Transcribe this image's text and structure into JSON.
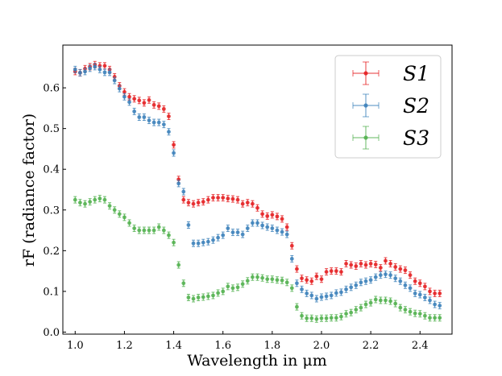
{
  "chart_data": {
    "type": "scatter",
    "title": "",
    "xlabel": "Wavelength in μm",
    "ylabel": "rF (radiance factor)",
    "xlim": [
      0.95,
      2.53
    ],
    "ylim": [
      -0.005,
      0.705
    ],
    "xticks": [
      1.0,
      1.2,
      1.4,
      1.6,
      1.8,
      2.0,
      2.2,
      2.4
    ],
    "xtick_labels": [
      "1.0",
      "1.2",
      "1.4",
      "1.6",
      "1.8",
      "2.0",
      "2.2",
      "2.4"
    ],
    "yticks": [
      0.0,
      0.1,
      0.2,
      0.3,
      0.4,
      0.5,
      0.6
    ],
    "ytick_labels": [
      "0.0",
      "0.1",
      "0.2",
      "0.3",
      "0.4",
      "0.5",
      "0.6"
    ],
    "grid": false,
    "error_bars": true,
    "legend_position": "top-right",
    "series": [
      {
        "name": "S1",
        "color": "#e41a1c",
        "x": [
          1.0,
          1.02,
          1.04,
          1.06,
          1.08,
          1.1,
          1.12,
          1.14,
          1.16,
          1.18,
          1.2,
          1.22,
          1.24,
          1.26,
          1.28,
          1.3,
          1.32,
          1.34,
          1.36,
          1.38,
          1.4,
          1.42,
          1.44,
          1.46,
          1.48,
          1.5,
          1.52,
          1.54,
          1.56,
          1.58,
          1.6,
          1.62,
          1.64,
          1.66,
          1.68,
          1.7,
          1.72,
          1.74,
          1.76,
          1.78,
          1.8,
          1.82,
          1.84,
          1.86,
          1.88,
          1.9,
          1.92,
          1.94,
          1.96,
          1.98,
          2.0,
          2.02,
          2.04,
          2.06,
          2.08,
          2.1,
          2.12,
          2.14,
          2.16,
          2.18,
          2.2,
          2.22,
          2.24,
          2.26,
          2.28,
          2.3,
          2.32,
          2.34,
          2.36,
          2.38,
          2.4,
          2.42,
          2.44,
          2.46,
          2.48
        ],
        "y": [
          0.64,
          0.637,
          0.647,
          0.652,
          0.657,
          0.654,
          0.654,
          0.645,
          0.627,
          0.605,
          0.59,
          0.578,
          0.573,
          0.569,
          0.563,
          0.57,
          0.558,
          0.555,
          0.548,
          0.53,
          0.46,
          0.375,
          0.325,
          0.318,
          0.315,
          0.318,
          0.32,
          0.325,
          0.33,
          0.33,
          0.33,
          0.328,
          0.327,
          0.325,
          0.315,
          0.318,
          0.315,
          0.305,
          0.29,
          0.285,
          0.288,
          0.284,
          0.278,
          0.258,
          0.212,
          0.155,
          0.132,
          0.128,
          0.125,
          0.137,
          0.13,
          0.148,
          0.15,
          0.15,
          0.148,
          0.168,
          0.165,
          0.162,
          0.168,
          0.165,
          0.168,
          0.166,
          0.158,
          0.175,
          0.168,
          0.16,
          0.155,
          0.152,
          0.14,
          0.125,
          0.12,
          0.112,
          0.1,
          0.095,
          0.095
        ]
      },
      {
        "name": "S2",
        "color": "#377eb8",
        "x": [
          1.0,
          1.02,
          1.04,
          1.06,
          1.08,
          1.1,
          1.12,
          1.14,
          1.16,
          1.18,
          1.2,
          1.22,
          1.24,
          1.26,
          1.28,
          1.3,
          1.32,
          1.34,
          1.36,
          1.38,
          1.4,
          1.42,
          1.44,
          1.46,
          1.48,
          1.5,
          1.52,
          1.54,
          1.56,
          1.58,
          1.6,
          1.62,
          1.64,
          1.66,
          1.68,
          1.7,
          1.72,
          1.74,
          1.76,
          1.78,
          1.8,
          1.82,
          1.84,
          1.86,
          1.88,
          1.9,
          1.92,
          1.94,
          1.96,
          1.98,
          2.0,
          2.02,
          2.04,
          2.06,
          2.08,
          2.1,
          2.12,
          2.14,
          2.16,
          2.18,
          2.2,
          2.22,
          2.24,
          2.26,
          2.28,
          2.3,
          2.32,
          2.34,
          2.36,
          2.38,
          2.4,
          2.42,
          2.44,
          2.46,
          2.48
        ],
        "y": [
          0.645,
          0.637,
          0.64,
          0.648,
          0.652,
          0.645,
          0.638,
          0.638,
          0.618,
          0.598,
          0.578,
          0.565,
          0.542,
          0.528,
          0.528,
          0.52,
          0.515,
          0.515,
          0.51,
          0.492,
          0.44,
          0.365,
          0.345,
          0.263,
          0.218,
          0.218,
          0.22,
          0.222,
          0.226,
          0.232,
          0.238,
          0.255,
          0.245,
          0.245,
          0.24,
          0.255,
          0.268,
          0.268,
          0.262,
          0.258,
          0.255,
          0.25,
          0.246,
          0.24,
          0.18,
          0.12,
          0.105,
          0.095,
          0.09,
          0.082,
          0.086,
          0.088,
          0.09,
          0.096,
          0.098,
          0.105,
          0.11,
          0.115,
          0.122,
          0.125,
          0.128,
          0.135,
          0.14,
          0.142,
          0.14,
          0.132,
          0.125,
          0.115,
          0.108,
          0.095,
          0.092,
          0.085,
          0.078,
          0.068,
          0.065
        ]
      },
      {
        "name": "S3",
        "color": "#4daf4a",
        "x": [
          1.0,
          1.02,
          1.04,
          1.06,
          1.08,
          1.1,
          1.12,
          1.14,
          1.16,
          1.18,
          1.2,
          1.22,
          1.24,
          1.26,
          1.28,
          1.3,
          1.32,
          1.34,
          1.36,
          1.38,
          1.4,
          1.42,
          1.44,
          1.46,
          1.48,
          1.5,
          1.52,
          1.54,
          1.56,
          1.58,
          1.6,
          1.62,
          1.64,
          1.66,
          1.68,
          1.7,
          1.72,
          1.74,
          1.76,
          1.78,
          1.8,
          1.82,
          1.84,
          1.86,
          1.88,
          1.9,
          1.92,
          1.94,
          1.96,
          1.98,
          2.0,
          2.02,
          2.04,
          2.06,
          2.08,
          2.1,
          2.12,
          2.14,
          2.16,
          2.18,
          2.2,
          2.22,
          2.24,
          2.26,
          2.28,
          2.3,
          2.32,
          2.34,
          2.36,
          2.38,
          2.4,
          2.42,
          2.44,
          2.46,
          2.48
        ],
        "y": [
          0.325,
          0.318,
          0.315,
          0.32,
          0.325,
          0.328,
          0.325,
          0.31,
          0.3,
          0.29,
          0.282,
          0.268,
          0.255,
          0.25,
          0.25,
          0.25,
          0.25,
          0.258,
          0.25,
          0.238,
          0.22,
          0.165,
          0.12,
          0.085,
          0.082,
          0.085,
          0.086,
          0.088,
          0.09,
          0.096,
          0.1,
          0.112,
          0.108,
          0.11,
          0.118,
          0.126,
          0.135,
          0.135,
          0.133,
          0.13,
          0.13,
          0.128,
          0.127,
          0.122,
          0.108,
          0.062,
          0.04,
          0.034,
          0.034,
          0.032,
          0.034,
          0.034,
          0.035,
          0.035,
          0.038,
          0.045,
          0.048,
          0.055,
          0.06,
          0.068,
          0.072,
          0.08,
          0.078,
          0.078,
          0.076,
          0.07,
          0.06,
          0.055,
          0.05,
          0.046,
          0.045,
          0.04,
          0.035,
          0.035,
          0.035
        ]
      }
    ]
  }
}
